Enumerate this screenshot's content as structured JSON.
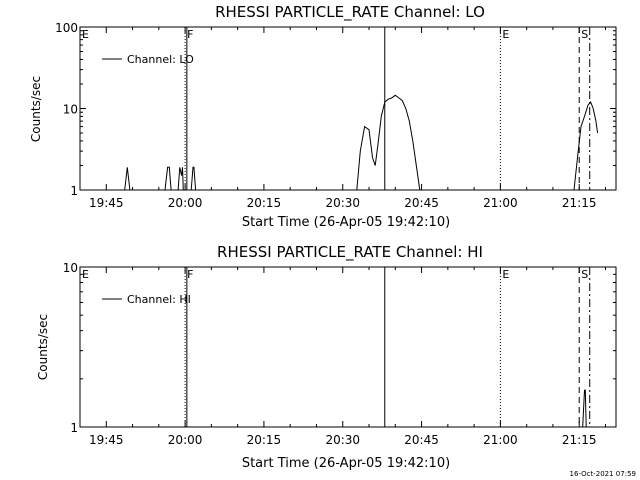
{
  "chart_data": [
    {
      "type": "line",
      "title": "RHESSI PARTICLE_RATE Channel: LO",
      "xlabel": "Start Time (26-Apr-05 19:42:10)",
      "ylabel": "Counts/sec",
      "yscale": "log",
      "ylim": [
        1,
        100
      ],
      "xlim": [
        "19:40",
        "21:22"
      ],
      "x_ticks": [
        "19:45",
        "20:00",
        "20:15",
        "20:30",
        "20:45",
        "21:00",
        "21:15"
      ],
      "y_ticks": [
        "1",
        "10",
        "100"
      ],
      "legend": {
        "position": "top-left",
        "entries": [
          "Channel: LO"
        ]
      },
      "grid": false,
      "event_markers": [
        {
          "time": "19:40",
          "label": "E",
          "style": "dotted"
        },
        {
          "time": "20:00",
          "label": "F",
          "style": "dotted"
        },
        {
          "time": "20:00:20",
          "label": "",
          "style": "solid"
        },
        {
          "time": "20:38",
          "label": "",
          "style": "solid"
        },
        {
          "time": "21:00",
          "label": "E",
          "style": "dotted"
        },
        {
          "time": "21:15",
          "label": "S",
          "style": "dashed"
        },
        {
          "time": "21:17",
          "label": "",
          "style": "dash-dot"
        }
      ],
      "series": [
        {
          "name": "Channel: LO",
          "x": [
            "19:48:30",
            "19:49:00",
            "19:49:30",
            "19:56:10",
            "19:56:40",
            "19:57:00",
            "19:57:20",
            "19:58:40",
            "19:59:00",
            "19:59:20",
            "19:59:30",
            "19:59:40",
            "20:01:10",
            "20:01:30",
            "20:01:40",
            "20:02:00",
            "20:32:40",
            "20:33:20",
            "20:34:10",
            "20:35:00",
            "20:35:40",
            "20:36:10",
            "20:36:40",
            "20:37:20",
            "20:38:00",
            "20:38:40",
            "20:39:20",
            "20:40:00",
            "20:40:40",
            "20:41:20",
            "20:42:00",
            "20:42:40",
            "20:43:20",
            "20:44:00",
            "20:44:40",
            "21:14:00",
            "21:14:40",
            "21:15:20",
            "21:16:00",
            "21:16:40",
            "21:17:10",
            "21:17:40",
            "21:18:10",
            "21:18:30"
          ],
          "y": [
            1,
            1.9,
            1,
            1,
            1.9,
            1.9,
            1,
            1,
            1.9,
            1.5,
            1.9,
            1,
            1,
            1.9,
            1.9,
            1,
            1,
            3,
            6,
            5.5,
            2.5,
            2,
            3.5,
            8,
            12,
            13,
            13.5,
            14.5,
            13.5,
            12.5,
            10,
            7,
            4,
            2,
            1,
            1,
            2.5,
            6,
            8,
            11,
            12,
            10,
            7,
            5
          ]
        }
      ]
    },
    {
      "type": "line",
      "title": "RHESSI PARTICLE_RATE Channel: HI",
      "xlabel": "Start Time (26-Apr-05 19:42:10)",
      "ylabel": "Counts/sec",
      "yscale": "log",
      "ylim": [
        1,
        10
      ],
      "xlim": [
        "19:40",
        "21:22"
      ],
      "x_ticks": [
        "19:45",
        "20:00",
        "20:15",
        "20:30",
        "20:45",
        "21:00",
        "21:15"
      ],
      "y_ticks": [
        "1",
        "10"
      ],
      "legend": {
        "position": "top-left",
        "entries": [
          "Channel: HI"
        ]
      },
      "grid": false,
      "event_markers": [
        {
          "time": "19:40",
          "label": "E",
          "style": "dotted"
        },
        {
          "time": "20:00",
          "label": "F",
          "style": "dotted"
        },
        {
          "time": "20:00:20",
          "label": "",
          "style": "solid"
        },
        {
          "time": "20:38",
          "label": "",
          "style": "solid"
        },
        {
          "time": "21:00",
          "label": "E",
          "style": "dotted"
        },
        {
          "time": "21:15",
          "label": "S",
          "style": "dashed"
        },
        {
          "time": "21:17",
          "label": "",
          "style": "dash-dot"
        }
      ],
      "series": [
        {
          "name": "Channel: HI",
          "x": [
            "21:15:40",
            "21:16:00",
            "21:16:10",
            "21:16:20"
          ],
          "y": [
            1,
            1.7,
            1.7,
            1
          ]
        }
      ]
    }
  ],
  "footer": {
    "timestamp": "16-Oct-2021 07:59"
  }
}
